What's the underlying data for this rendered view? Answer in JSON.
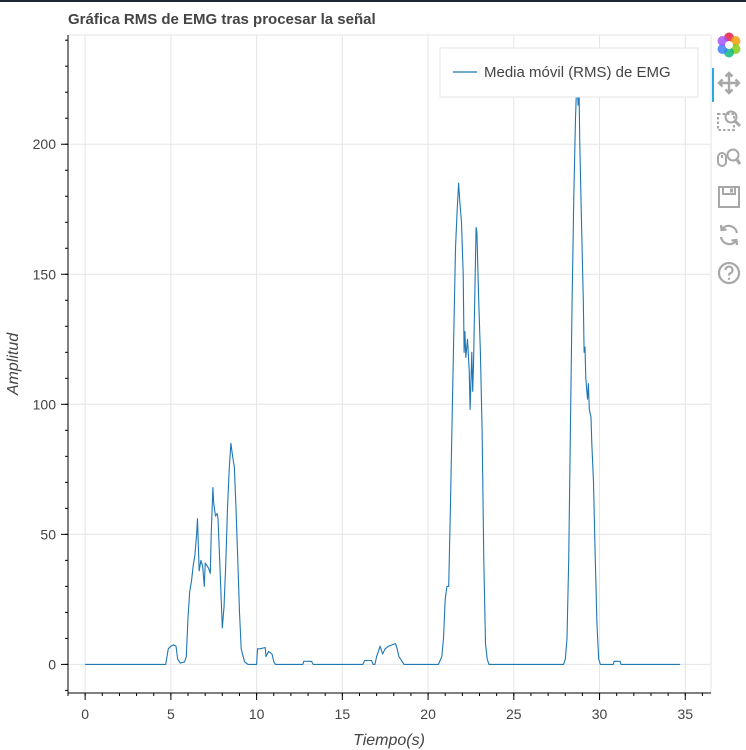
{
  "chart_data": {
    "type": "line",
    "title": "Gráfica RMS de EMG tras procesar la señal",
    "xlabel": "Tiempo(s)",
    "ylabel": "Amplitud",
    "xlim": [
      -1.0,
      36.5
    ],
    "ylim": [
      -11,
      242
    ],
    "x_ticks": [
      0,
      5,
      10,
      15,
      20,
      25,
      30,
      35
    ],
    "x_tick_labels": [
      "0",
      "5",
      "10",
      "15",
      "20",
      "25",
      "30",
      "35"
    ],
    "y_ticks": [
      0,
      50,
      100,
      150,
      200
    ],
    "y_tick_labels": [
      "0",
      "50",
      "100",
      "150",
      "200"
    ],
    "grid": true,
    "legend": {
      "position": "top-right",
      "entries": [
        "Media móvil (RMS) de EMG"
      ]
    },
    "series": [
      {
        "name": "Media móvil (RMS) de EMG",
        "color": "#1f77b4",
        "points": [
          [
            0,
            0
          ],
          [
            4.7,
            0
          ],
          [
            4.85,
            6
          ],
          [
            5.0,
            7
          ],
          [
            5.15,
            7.5
          ],
          [
            5.3,
            7
          ],
          [
            5.4,
            2
          ],
          [
            5.55,
            0.5
          ],
          [
            5.8,
            1
          ],
          [
            5.9,
            3
          ],
          [
            6.0,
            18
          ],
          [
            6.1,
            28
          ],
          [
            6.2,
            32
          ],
          [
            6.3,
            38
          ],
          [
            6.4,
            42
          ],
          [
            6.5,
            50
          ],
          [
            6.55,
            56
          ],
          [
            6.6,
            46
          ],
          [
            6.65,
            36
          ],
          [
            6.75,
            40
          ],
          [
            6.85,
            38
          ],
          [
            6.95,
            30
          ],
          [
            7.0,
            39
          ],
          [
            7.1,
            38
          ],
          [
            7.2,
            37
          ],
          [
            7.3,
            35
          ],
          [
            7.35,
            50
          ],
          [
            7.45,
            68
          ],
          [
            7.5,
            62
          ],
          [
            7.6,
            57
          ],
          [
            7.7,
            58
          ],
          [
            7.75,
            56
          ],
          [
            7.85,
            40
          ],
          [
            8.0,
            14
          ],
          [
            8.1,
            22
          ],
          [
            8.2,
            38
          ],
          [
            8.3,
            60
          ],
          [
            8.4,
            75
          ],
          [
            8.5,
            85
          ],
          [
            8.6,
            80
          ],
          [
            8.7,
            76
          ],
          [
            8.8,
            60
          ],
          [
            8.9,
            40
          ],
          [
            9.0,
            20
          ],
          [
            9.1,
            6
          ],
          [
            9.3,
            1
          ],
          [
            9.5,
            0
          ],
          [
            10.0,
            0
          ],
          [
            10.05,
            6
          ],
          [
            10.2,
            6
          ],
          [
            10.5,
            6.5
          ],
          [
            10.55,
            3
          ],
          [
            10.7,
            5
          ],
          [
            10.9,
            4
          ],
          [
            11.0,
            1
          ],
          [
            11.1,
            0
          ],
          [
            12.7,
            0
          ],
          [
            12.75,
            1.2
          ],
          [
            13.2,
            1.2
          ],
          [
            13.3,
            0
          ],
          [
            16.2,
            0
          ],
          [
            16.3,
            1.5
          ],
          [
            16.7,
            1.5
          ],
          [
            16.8,
            0
          ],
          [
            16.9,
            0
          ],
          [
            17.0,
            3
          ],
          [
            17.1,
            5
          ],
          [
            17.2,
            7
          ],
          [
            17.35,
            4
          ],
          [
            17.5,
            6
          ],
          [
            17.7,
            7
          ],
          [
            17.9,
            7.5
          ],
          [
            18.1,
            8
          ],
          [
            18.2,
            6
          ],
          [
            18.3,
            3
          ],
          [
            18.5,
            1
          ],
          [
            18.6,
            0
          ],
          [
            20.6,
            0
          ],
          [
            20.8,
            3
          ],
          [
            20.9,
            10
          ],
          [
            21.0,
            25
          ],
          [
            21.1,
            30
          ],
          [
            21.2,
            30
          ],
          [
            21.3,
            60
          ],
          [
            21.45,
            110
          ],
          [
            21.6,
            160
          ],
          [
            21.7,
            175
          ],
          [
            21.78,
            185
          ],
          [
            21.85,
            178
          ],
          [
            21.95,
            170
          ],
          [
            22.05,
            150
          ],
          [
            22.1,
            120
          ],
          [
            22.15,
            128
          ],
          [
            22.2,
            118
          ],
          [
            22.3,
            125
          ],
          [
            22.4,
            113
          ],
          [
            22.45,
            98
          ],
          [
            22.55,
            120
          ],
          [
            22.6,
            105
          ],
          [
            22.65,
            115
          ],
          [
            22.75,
            150
          ],
          [
            22.8,
            168
          ],
          [
            22.85,
            166
          ],
          [
            22.95,
            140
          ],
          [
            23.05,
            120
          ],
          [
            23.15,
            90
          ],
          [
            23.25,
            40
          ],
          [
            23.35,
            8
          ],
          [
            23.45,
            2
          ],
          [
            23.55,
            0
          ],
          [
            27.9,
            0
          ],
          [
            28.0,
            2
          ],
          [
            28.1,
            10
          ],
          [
            28.2,
            40
          ],
          [
            28.3,
            90
          ],
          [
            28.4,
            140
          ],
          [
            28.5,
            180
          ],
          [
            28.6,
            210
          ],
          [
            28.65,
            220
          ],
          [
            28.7,
            226
          ],
          [
            28.75,
            215
          ],
          [
            28.8,
            222
          ],
          [
            28.85,
            200
          ],
          [
            28.95,
            170
          ],
          [
            29.05,
            140
          ],
          [
            29.1,
            120
          ],
          [
            29.15,
            122
          ],
          [
            29.2,
            110
          ],
          [
            29.3,
            102
          ],
          [
            29.35,
            108
          ],
          [
            29.4,
            98
          ],
          [
            29.5,
            95
          ],
          [
            29.55,
            85
          ],
          [
            29.65,
            70
          ],
          [
            29.75,
            40
          ],
          [
            29.85,
            15
          ],
          [
            29.95,
            2
          ],
          [
            30.05,
            0
          ],
          [
            30.8,
            0
          ],
          [
            30.85,
            1.2
          ],
          [
            31.2,
            1.2
          ],
          [
            31.25,
            0
          ],
          [
            34.7,
            0
          ]
        ]
      }
    ]
  },
  "toolbar": {
    "tools": [
      {
        "name": "bokeh-logo-icon"
      },
      {
        "name": "pan-tool-icon"
      },
      {
        "name": "box-zoom-tool-icon"
      },
      {
        "name": "wheel-zoom-tool-icon"
      },
      {
        "name": "save-tool-icon"
      },
      {
        "name": "reset-tool-icon"
      },
      {
        "name": "help-tool-icon"
      }
    ],
    "colors": {
      "icon": "#a7a7a7",
      "active": "#26aae1"
    }
  }
}
